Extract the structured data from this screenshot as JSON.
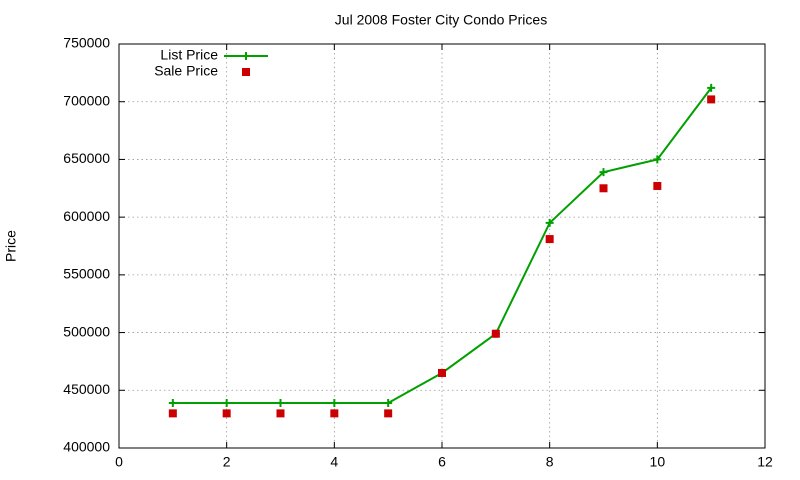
{
  "chart_data": {
    "type": "line",
    "title": "Jul 2008 Foster City Condo Prices",
    "y_label": "Price",
    "x": [
      1,
      2,
      3,
      4,
      5,
      6,
      7,
      8,
      9,
      10,
      11
    ],
    "series": [
      {
        "name": "List Price",
        "color": "#00a000",
        "line": true,
        "marker": "plus",
        "values": [
          439000,
          439000,
          439000,
          439000,
          439000,
          465000,
          499000,
          595000,
          639000,
          650000,
          712000
        ]
      },
      {
        "name": "Sale Price",
        "color": "#cc0000",
        "line": false,
        "marker": "square",
        "values": [
          430000,
          430000,
          430000,
          430000,
          430000,
          465000,
          499000,
          581000,
          625000,
          627000,
          702000
        ]
      }
    ],
    "xlim": [
      0,
      12
    ],
    "xticks": [
      0,
      2,
      4,
      6,
      8,
      10,
      12
    ],
    "ylim": [
      400000,
      750000
    ],
    "yticks": [
      400000,
      450000,
      500000,
      550000,
      600000,
      650000,
      700000,
      750000
    ],
    "grid": true,
    "legend": "top-left"
  }
}
